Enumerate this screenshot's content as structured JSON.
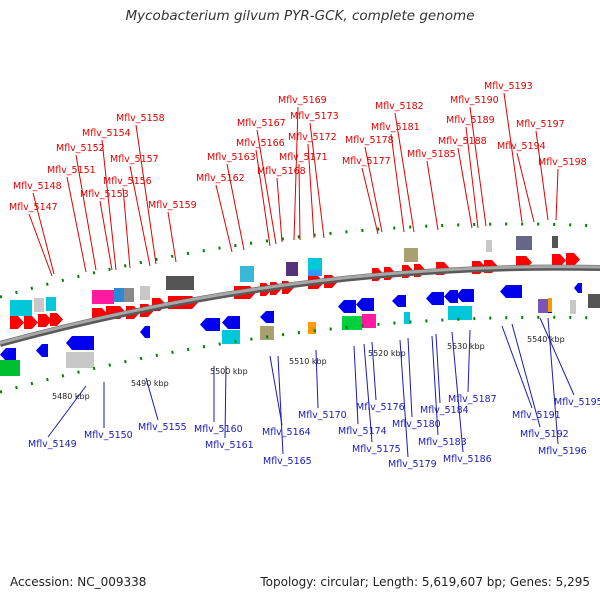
{
  "title": "Mycobacterium gilvum PYR-GCK, complete genome",
  "footer": {
    "accession": "Accession: NC_009338",
    "summary": "Topology: circular; Length: 5,619,607 bp; Genes: 5,295"
  },
  "colors": {
    "forward": "#ff0000",
    "reverse": "#0000ee",
    "top_label": "#e00000",
    "bottom_label": "#1a1ab8",
    "backbone": "#808080",
    "tick": "#008000"
  },
  "scale_labels": [
    "5480 kbp",
    "5490 kbp",
    "5500 kbp",
    "5510 kbp",
    "5520 kbp",
    "5530 kbp",
    "5540 kbp"
  ],
  "top_genes": [
    "Mflv_5147",
    "Mflv_5148",
    "Mflv_5151",
    "Mflv_5152",
    "Mflv_5153",
    "Mflv_5154",
    "Mflv_5156",
    "Mflv_5157",
    "Mflv_5158",
    "Mflv_5159",
    "Mflv_5162",
    "Mflv_5163",
    "Mflv_5166",
    "Mflv_5167",
    "Mflv_5168",
    "Mflv_5169",
    "Mflv_5171",
    "Mflv_5172",
    "Mflv_5173",
    "Mflv_5177",
    "Mflv_5178",
    "Mflv_5181",
    "Mflv_5182",
    "Mflv_5185",
    "Mflv_5188",
    "Mflv_5189",
    "Mflv_5190",
    "Mflv_5193",
    "Mflv_5194",
    "Mflv_5197",
    "Mflv_5198"
  ],
  "bottom_genes": [
    "Mflv_5149",
    "Mflv_5150",
    "Mflv_5155",
    "Mflv_5160",
    "Mflv_5161",
    "Mflv_5164",
    "Mflv_5165",
    "Mflv_5170",
    "Mflv_5174",
    "Mflv_5175",
    "Mflv_5176",
    "Mflv_5179",
    "Mflv_5180",
    "Mflv_5183",
    "Mflv_5184",
    "Mflv_5186",
    "Mflv_5187",
    "Mflv_5191",
    "Mflv_5192",
    "Mflv_5195",
    "Mflv_5196"
  ]
}
